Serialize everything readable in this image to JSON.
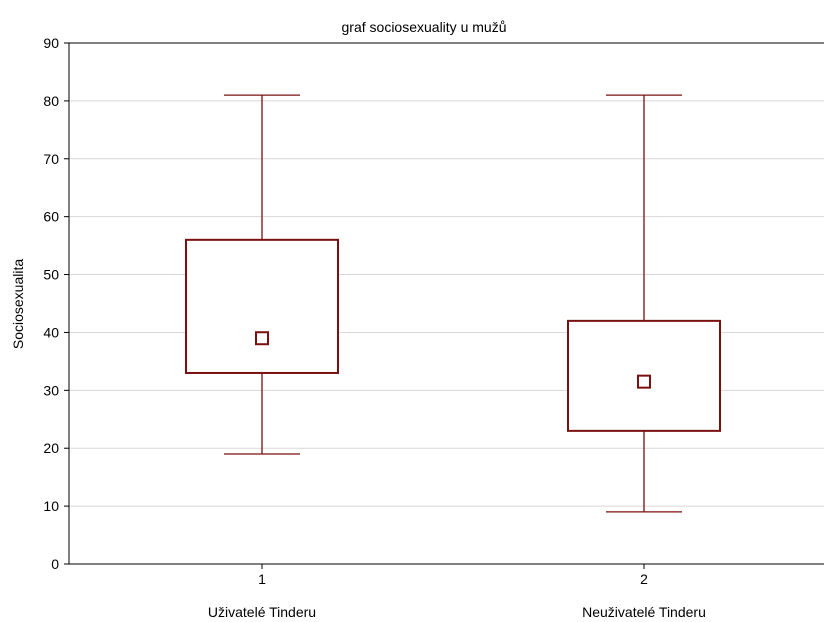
{
  "chart_data": {
    "type": "box",
    "title": "graf sociosexuality u mužů",
    "xlabel": "",
    "ylabel": "Sociosexualita",
    "ylim": [
      0,
      90
    ],
    "yticks": [
      0,
      10,
      20,
      30,
      40,
      50,
      60,
      70,
      80,
      90
    ],
    "grid": true,
    "categories": [
      {
        "tick": "1",
        "label": "Uživatelé Tinderu"
      },
      {
        "tick": "2",
        "label": "Neuživatelé Tinderu"
      }
    ],
    "boxes": [
      {
        "whisker_low": 19,
        "q1": 33,
        "median": 39,
        "q3": 56,
        "whisker_high": 81
      },
      {
        "whisker_low": 9,
        "q1": 23,
        "median": 31.5,
        "q3": 42,
        "whisker_high": 81
      }
    ],
    "colors": {
      "box": "#7a1010",
      "grid": "#d8d8d8",
      "axis": "#000000"
    }
  }
}
